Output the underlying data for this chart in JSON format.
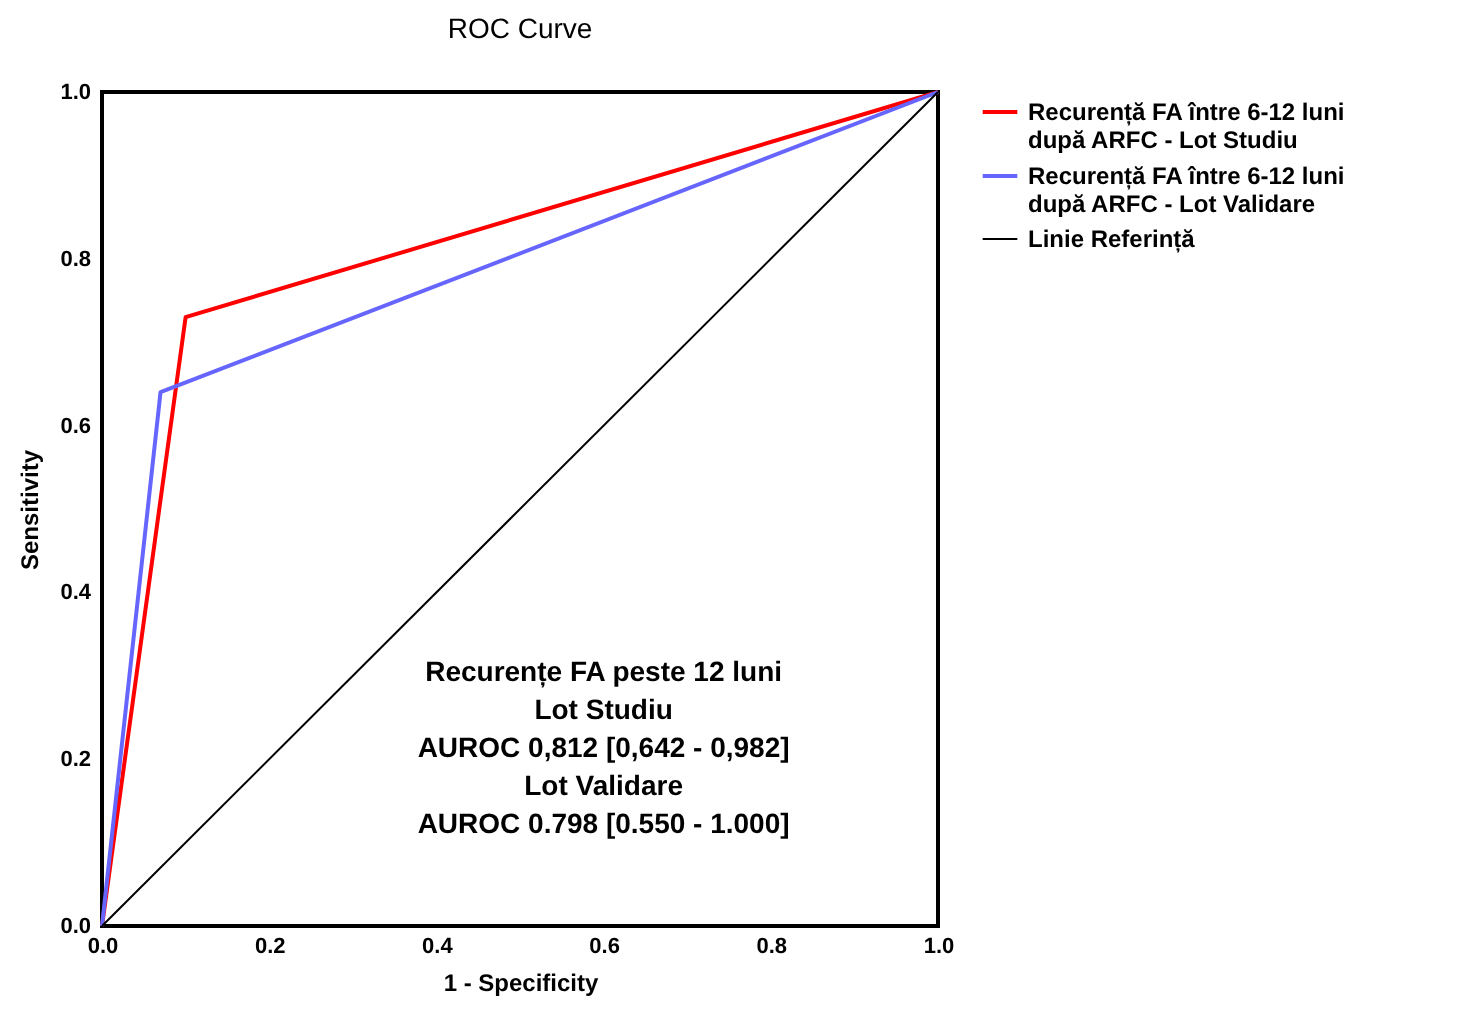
{
  "chart_data": {
    "type": "line",
    "title": "ROC Curve",
    "xlabel": "1 - Specificity",
    "ylabel": "Sensitivity",
    "xlim": [
      0,
      1
    ],
    "ylim": [
      0,
      1
    ],
    "xticks": [
      {
        "value": 0,
        "label": "0.0"
      },
      {
        "value": 0.2,
        "label": "0.2"
      },
      {
        "value": 0.4,
        "label": "0.4"
      },
      {
        "value": 0.6,
        "label": "0.6"
      },
      {
        "value": 0.8,
        "label": "0.8"
      },
      {
        "value": 1,
        "label": "1.0"
      }
    ],
    "yticks": [
      {
        "value": 0,
        "label": "0.0"
      },
      {
        "value": 0.2,
        "label": "0.2"
      },
      {
        "value": 0.4,
        "label": "0.4"
      },
      {
        "value": 0.6,
        "label": "0.6"
      },
      {
        "value": 0.8,
        "label": "0.8"
      },
      {
        "value": 1,
        "label": "1.0"
      }
    ],
    "grid": false,
    "legend": "top right",
    "marker": "none",
    "line_style": "solid",
    "series": [
      {
        "name": "Recurență FA între 6-12 luni după ARFC - Lot Studiu",
        "color": "#ff0000",
        "x": [
          0,
          0.1,
          1
        ],
        "values": [
          0,
          0.73,
          1
        ]
      },
      {
        "name": "Recurență FA între 6-12 luni după ARFC - Lot Validare",
        "color": "#6666ff",
        "x": [
          0,
          0.07,
          1
        ],
        "values": [
          0,
          0.64,
          1
        ]
      },
      {
        "name": "Linie Referință",
        "color": "#000000",
        "x": [
          0,
          1
        ],
        "values": [
          0,
          1
        ]
      }
    ],
    "annotations": [
      "Recurențe FA peste 12 luni",
      "Lot Studiu",
      "AUROC 0,812 [0,642 - 0,982]",
      "Lot Validare",
      "AUROC 0.798 [0.550 - 1.000]"
    ]
  }
}
